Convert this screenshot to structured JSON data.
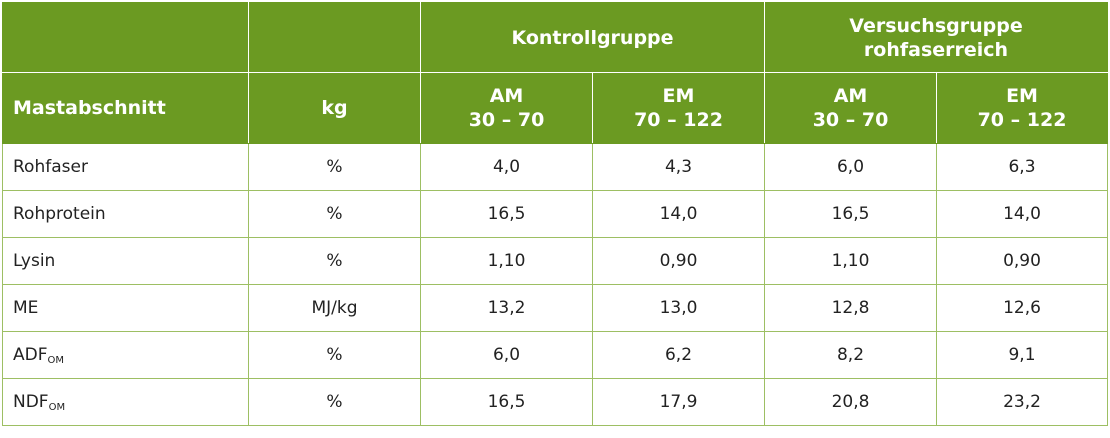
{
  "header": {
    "group_kontroll": "Kontrollgruppe",
    "group_versuch_line1": "Versuchsgruppe",
    "group_versuch_line2": "rohfaserreich",
    "col_mastabschnitt": "Mastabschnitt",
    "col_unit": "kg",
    "am_label": "AM",
    "am_range": "30 – 70",
    "em_label": "EM",
    "em_range": "70 – 122"
  },
  "rows": [
    {
      "name": "Rohfaser",
      "sub": "",
      "unit": "%",
      "values": [
        "4,0",
        "4,3",
        "6,0",
        "6,3"
      ]
    },
    {
      "name": "Rohprotein",
      "sub": "",
      "unit": "%",
      "values": [
        "16,5",
        "14,0",
        "16,5",
        "14,0"
      ]
    },
    {
      "name": "Lysin",
      "sub": "",
      "unit": "%",
      "values": [
        "1,10",
        "0,90",
        "1,10",
        "0,90"
      ]
    },
    {
      "name": "ME",
      "sub": "",
      "unit": "MJ/kg",
      "values": [
        "13,2",
        "13,0",
        "12,8",
        "12,6"
      ]
    },
    {
      "name": "ADF",
      "sub": "OM",
      "unit": "%",
      "values": [
        "6,0",
        "6,2",
        "8,2",
        "9,1"
      ]
    },
    {
      "name": "NDF",
      "sub": "OM",
      "unit": "%",
      "values": [
        "16,5",
        "17,9",
        "20,8",
        "23,2"
      ]
    }
  ]
}
